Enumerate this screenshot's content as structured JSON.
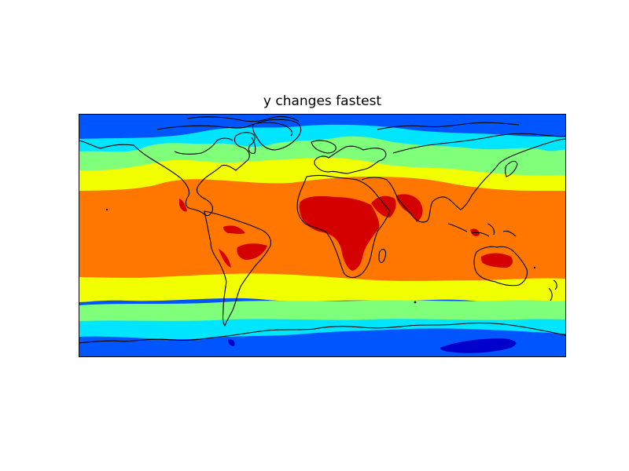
{
  "map": {
    "title": "y changes fastest",
    "projection": "cylindrical",
    "coastlines": true,
    "colormap": "jet",
    "bands": [
      {
        "name": "band-polar",
        "color": "#0055ff"
      },
      {
        "name": "band-cold",
        "color": "#00e5ff"
      },
      {
        "name": "band-cool",
        "color": "#7fff7a"
      },
      {
        "name": "band-mild",
        "color": "#f2ff00"
      },
      {
        "name": "band-warm",
        "color": "#ff7700"
      },
      {
        "name": "band-hot",
        "color": "#d40000"
      },
      {
        "name": "band-coldest",
        "color": "#0000cc"
      }
    ]
  }
}
